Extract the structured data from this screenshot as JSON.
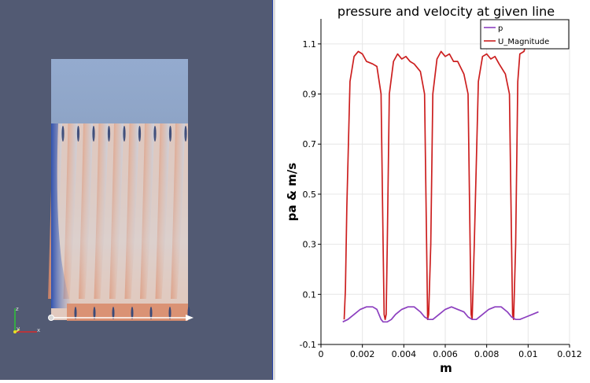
{
  "render_view": {
    "axes": {
      "x": "x",
      "y": "y",
      "z": "z"
    },
    "colors": {
      "background": "#525a73",
      "upper_region": "#8fa6c8",
      "warm": "#d9805d",
      "cool": "#9db2d2",
      "deep_blue": "#3f5fb5"
    },
    "probe_line": "white arrow along sample line"
  },
  "chart": {
    "title": "pressure and velocity at given line",
    "xlabel": "m",
    "ylabel": "pa & m/s",
    "legend": [
      {
        "label": "p",
        "color": "#8c3fbf"
      },
      {
        "label": "U_Magnitude",
        "color": "#cc1f1f"
      }
    ],
    "x_ticks": [
      "0",
      "0.002",
      "0.004",
      "0.006",
      "0.008",
      "0.01",
      "0.012"
    ],
    "y_ticks": [
      "-0.1",
      "0.1",
      "0.3",
      "0.5",
      "0.7",
      "0.9",
      "1.1"
    ]
  },
  "chart_data": {
    "type": "line",
    "title": "pressure and velocity at given line",
    "xlabel": "m",
    "ylabel": "pa & m/s",
    "xlim": [
      0,
      0.012
    ],
    "ylim": [
      -0.1,
      1.2
    ],
    "grid": true,
    "legend_position": "top-right",
    "series": [
      {
        "name": "U_Magnitude",
        "color": "#cc1f1f",
        "x": [
          0.00112,
          0.00118,
          0.00125,
          0.0014,
          0.0016,
          0.0018,
          0.002,
          0.0022,
          0.0025,
          0.0027,
          0.0029,
          0.003,
          0.00305,
          0.0031,
          0.00315,
          0.0032,
          0.0033,
          0.0035,
          0.0037,
          0.0039,
          0.0041,
          0.0043,
          0.0045,
          0.0048,
          0.005,
          0.0051,
          0.00515,
          0.0052,
          0.0053,
          0.0054,
          0.0056,
          0.0058,
          0.006,
          0.0062,
          0.0064,
          0.0066,
          0.0069,
          0.0071,
          0.0072,
          0.00725,
          0.0073,
          0.0074,
          0.0076,
          0.0078,
          0.008,
          0.0082,
          0.0084,
          0.0086,
          0.0089,
          0.0091,
          0.0092,
          0.00925,
          0.0093,
          0.0094,
          0.0095,
          0.0096,
          0.0098,
          0.0099,
          0.01
        ],
        "y": [
          0.0,
          0.12,
          0.45,
          0.95,
          1.05,
          1.07,
          1.06,
          1.03,
          1.02,
          1.01,
          0.9,
          0.3,
          0.02,
          0.0,
          0.02,
          0.3,
          0.9,
          1.03,
          1.06,
          1.04,
          1.05,
          1.03,
          1.02,
          0.99,
          0.9,
          0.3,
          0.0,
          0.02,
          0.3,
          0.9,
          1.04,
          1.07,
          1.05,
          1.06,
          1.03,
          1.03,
          0.98,
          0.9,
          0.3,
          0.02,
          0.0,
          0.3,
          0.95,
          1.05,
          1.06,
          1.04,
          1.05,
          1.02,
          0.98,
          0.9,
          0.3,
          0.02,
          0.0,
          0.3,
          0.95,
          1.06,
          1.07,
          1.1,
          1.15
        ]
      },
      {
        "name": "p",
        "color": "#8c3fbf",
        "x": [
          0.00105,
          0.0013,
          0.0016,
          0.0019,
          0.0022,
          0.0025,
          0.0027,
          0.0029,
          0.003,
          0.0032,
          0.0034,
          0.0036,
          0.0039,
          0.0042,
          0.0045,
          0.0048,
          0.005,
          0.0052,
          0.0054,
          0.0057,
          0.006,
          0.0063,
          0.0066,
          0.0069,
          0.0071,
          0.0073,
          0.0075,
          0.0078,
          0.0081,
          0.0084,
          0.0087,
          0.009,
          0.0092,
          0.0094,
          0.0096,
          0.0099,
          0.0102,
          0.0105
        ],
        "y": [
          -0.01,
          0.0,
          0.02,
          0.04,
          0.05,
          0.05,
          0.04,
          0.0,
          -0.01,
          -0.01,
          0.0,
          0.02,
          0.04,
          0.05,
          0.05,
          0.03,
          0.01,
          0.0,
          0.0,
          0.02,
          0.04,
          0.05,
          0.04,
          0.03,
          0.01,
          0.0,
          0.0,
          0.02,
          0.04,
          0.05,
          0.05,
          0.03,
          0.01,
          0.0,
          0.0,
          0.01,
          0.02,
          0.03
        ]
      }
    ]
  }
}
